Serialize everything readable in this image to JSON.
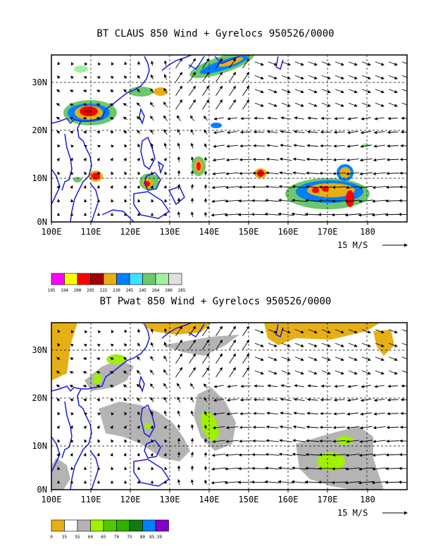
{
  "panels": [
    {
      "title": "BT CLAUS 850 Wind + Gyrelocs 950526/0000",
      "y_labels": [
        "30N",
        "20N",
        "10N",
        "0N"
      ],
      "x_labels": [
        "100E",
        "110E",
        "120E",
        "130E",
        "140E",
        "150E",
        "160E",
        "170E",
        "180"
      ],
      "reference_vector": "15 M/S",
      "colorbar_colors": [
        "#ff00ff",
        "#ffff00",
        "#ff0000",
        "#a00000",
        "#e6af14",
        "#0080ff",
        "#40e0ff",
        "#6cc86c",
        "#a0f0a0",
        "#e0e0e0"
      ],
      "colorbar_labels": [
        "195",
        "194",
        "200",
        "205",
        "215",
        "230",
        "245",
        "245",
        "264",
        "280",
        "285"
      ]
    },
    {
      "title": "BT Pwat 850 Wind + Gyrelocs 950526/0000",
      "y_labels": [
        "30N",
        "20N",
        "10N",
        "0N"
      ],
      "x_labels": [
        "100E",
        "110E",
        "120E",
        "130E",
        "140E",
        "150E",
        "160E",
        "170E",
        "180"
      ],
      "reference_vector": "15 M/S",
      "colorbar_colors": [
        "#e6af14",
        "#ffffff",
        "#b4b4b4",
        "#a0f000",
        "#50c800",
        "#30b000",
        "#107a10",
        "#0080ff",
        "#8000c8"
      ],
      "colorbar_labels": [
        "0",
        "35",
        "55",
        "60",
        "65",
        "70",
        "75",
        "80",
        "85.39"
      ]
    }
  ]
}
